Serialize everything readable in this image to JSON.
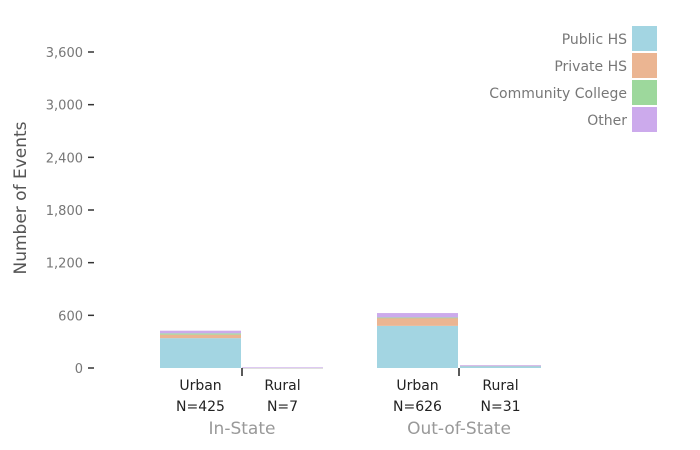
{
  "chart_data": {
    "type": "bar",
    "stacked": true,
    "title": "",
    "ylabel": "Number of Events",
    "xlabel": "",
    "ylim": [
      0,
      3900
    ],
    "yticks": [
      0,
      600,
      1200,
      1800,
      2400,
      3000,
      3600
    ],
    "ytick_labels": [
      "0",
      "600",
      "1,200",
      "1,800",
      "2,400",
      "3,000",
      "3,600"
    ],
    "grid": false,
    "legend_position": "top-right",
    "groups": [
      {
        "label": "In-State",
        "categories": [
          {
            "name": "Urban",
            "n_label": "N=425"
          },
          {
            "name": "Rural",
            "n_label": "N=7"
          }
        ]
      },
      {
        "label": "Out-of-State",
        "categories": [
          {
            "name": "Urban",
            "n_label": "N=626"
          },
          {
            "name": "Rural",
            "n_label": "N=31"
          }
        ]
      }
    ],
    "series": [
      {
        "name": "Public HS",
        "color": "#a3d5e2",
        "values": [
          340,
          4,
          480,
          28
        ]
      },
      {
        "name": "Private HS",
        "color": "#ebb592",
        "values": [
          40,
          1,
          90,
          2
        ]
      },
      {
        "name": "Community College",
        "color": "#9dd89c",
        "values": [
          15,
          1,
          6,
          0
        ]
      },
      {
        "name": "Other",
        "color": "#ccaaec",
        "values": [
          30,
          1,
          50,
          1
        ]
      }
    ]
  }
}
